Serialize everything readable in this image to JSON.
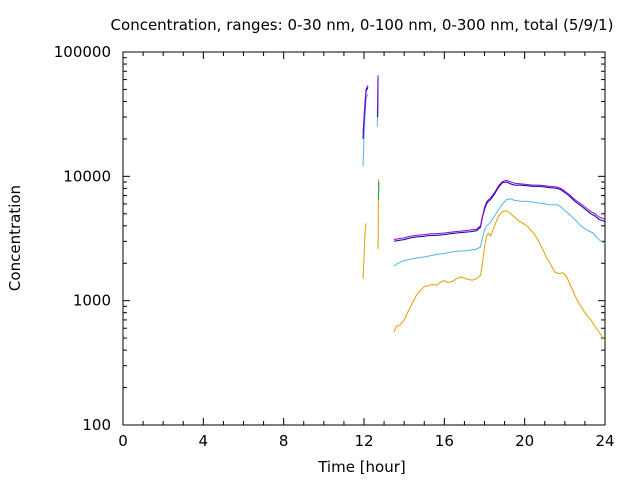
{
  "chart_data": {
    "type": "line",
    "title": "Concentration, ranges: 0-30 nm, 0-100 nm, 0-300 nm, total (5/9/1)",
    "xlabel": "Time [hour]",
    "ylabel": "Concentration",
    "xlim": [
      0,
      24
    ],
    "ylim": [
      100,
      100000
    ],
    "yscale": "log",
    "x_ticks": [
      0,
      4,
      8,
      12,
      16,
      20,
      24
    ],
    "x_tick_labels": [
      "0",
      "4",
      "8",
      "12",
      "16",
      "20",
      "24"
    ],
    "y_ticks": [
      100,
      1000,
      10000,
      100000
    ],
    "y_tick_labels": [
      "100",
      "1000",
      "10000",
      "100000"
    ],
    "grid": false,
    "legend": "none",
    "series": [
      {
        "color": "#e69f00",
        "segments": [
          [
            [
              11.95,
              1500
            ],
            [
              12.0,
              2200
            ],
            [
              12.05,
              3500
            ],
            [
              12.1,
              4200
            ]
          ],
          [
            [
              12.7,
              2600
            ],
            [
              12.72,
              9500
            ]
          ],
          [
            [
              13.5,
              560
            ],
            [
              13.6,
              620
            ],
            [
              13.8,
              640
            ],
            [
              14.0,
              700
            ],
            [
              14.2,
              820
            ],
            [
              14.4,
              950
            ],
            [
              14.6,
              1100
            ],
            [
              14.8,
              1200
            ],
            [
              15.0,
              1300
            ],
            [
              15.2,
              1320
            ],
            [
              15.4,
              1350
            ],
            [
              15.6,
              1330
            ],
            [
              15.8,
              1400
            ],
            [
              16.0,
              1450
            ],
            [
              16.2,
              1400
            ],
            [
              16.4,
              1430
            ],
            [
              16.6,
              1500
            ],
            [
              16.8,
              1550
            ],
            [
              17.0,
              1520
            ],
            [
              17.2,
              1480
            ],
            [
              17.4,
              1460
            ],
            [
              17.6,
              1500
            ],
            [
              17.8,
              1600
            ],
            [
              17.9,
              2000
            ],
            [
              18.0,
              2700
            ],
            [
              18.1,
              3300
            ],
            [
              18.2,
              3500
            ],
            [
              18.3,
              3300
            ],
            [
              18.5,
              4000
            ],
            [
              18.7,
              4800
            ],
            [
              18.9,
              5200
            ],
            [
              19.1,
              5300
            ],
            [
              19.3,
              5000
            ],
            [
              19.5,
              4700
            ],
            [
              19.7,
              4400
            ],
            [
              19.9,
              4200
            ],
            [
              20.1,
              4000
            ],
            [
              20.3,
              3700
            ],
            [
              20.5,
              3400
            ],
            [
              20.7,
              3000
            ],
            [
              20.9,
              2600
            ],
            [
              21.1,
              2200
            ],
            [
              21.3,
              1950
            ],
            [
              21.5,
              1700
            ],
            [
              21.7,
              1650
            ],
            [
              21.9,
              1680
            ],
            [
              22.1,
              1550
            ],
            [
              22.3,
              1300
            ],
            [
              22.5,
              1100
            ],
            [
              22.7,
              950
            ],
            [
              22.9,
              850
            ],
            [
              23.1,
              760
            ],
            [
              23.3,
              700
            ],
            [
              23.5,
              620
            ],
            [
              23.7,
              560
            ],
            [
              23.9,
              500
            ],
            [
              24.0,
              480
            ]
          ]
        ]
      },
      {
        "color": "#56b4e9",
        "segments": [
          [
            [
              11.95,
              12000
            ],
            [
              12.0,
              20000
            ],
            [
              12.05,
              30000
            ],
            [
              12.1,
              42000
            ],
            [
              12.2,
              46000
            ]
          ],
          [
            [
              12.66,
              25000
            ],
            [
              12.68,
              60000
            ]
          ],
          [
            [
              13.5,
              1900
            ],
            [
              13.7,
              2000
            ],
            [
              14.0,
              2100
            ],
            [
              14.3,
              2150
            ],
            [
              14.6,
              2200
            ],
            [
              15.0,
              2250
            ],
            [
              15.3,
              2300
            ],
            [
              15.6,
              2350
            ],
            [
              16.0,
              2400
            ],
            [
              16.3,
              2450
            ],
            [
              16.6,
              2500
            ],
            [
              17.0,
              2520
            ],
            [
              17.3,
              2550
            ],
            [
              17.6,
              2600
            ],
            [
              17.8,
              2700
            ],
            [
              17.9,
              3200
            ],
            [
              18.0,
              3700
            ],
            [
              18.1,
              4000
            ],
            [
              18.2,
              4100
            ],
            [
              18.3,
              4300
            ],
            [
              18.5,
              4800
            ],
            [
              18.7,
              5400
            ],
            [
              18.9,
              6000
            ],
            [
              19.1,
              6500
            ],
            [
              19.3,
              6600
            ],
            [
              19.5,
              6400
            ],
            [
              19.8,
              6300
            ],
            [
              20.1,
              6300
            ],
            [
              20.4,
              6200
            ],
            [
              20.7,
              6100
            ],
            [
              21.0,
              6000
            ],
            [
              21.3,
              5900
            ],
            [
              21.6,
              5900
            ],
            [
              21.8,
              5700
            ],
            [
              22.0,
              5300
            ],
            [
              22.2,
              5000
            ],
            [
              22.5,
              4500
            ],
            [
              22.8,
              4000
            ],
            [
              23.1,
              3700
            ],
            [
              23.4,
              3500
            ],
            [
              23.6,
              3200
            ],
            [
              23.8,
              3000
            ],
            [
              24.0,
              2900
            ]
          ]
        ]
      },
      {
        "color": "#009e73",
        "segments": [
          [
            [
              12.72,
              6500
            ],
            [
              12.74,
              9000
            ]
          ]
        ]
      },
      {
        "color": "#0000a0",
        "segments": [
          [
            [
              11.95,
              20000
            ],
            [
              12.0,
              28000
            ],
            [
              12.05,
              36000
            ],
            [
              12.1,
              48000
            ],
            [
              12.2,
              52000
            ]
          ],
          [
            [
              12.68,
              30000
            ],
            [
              12.7,
              62000
            ]
          ],
          [
            [
              13.5,
              3000
            ],
            [
              13.7,
              3050
            ],
            [
              14.0,
              3100
            ],
            [
              14.3,
              3200
            ],
            [
              14.6,
              3250
            ],
            [
              15.0,
              3300
            ],
            [
              15.3,
              3350
            ],
            [
              15.6,
              3350
            ],
            [
              16.0,
              3400
            ],
            [
              16.3,
              3450
            ],
            [
              16.6,
              3500
            ],
            [
              17.0,
              3550
            ],
            [
              17.3,
              3580
            ],
            [
              17.6,
              3650
            ],
            [
              17.8,
              3900
            ],
            [
              17.9,
              4700
            ],
            [
              18.0,
              5400
            ],
            [
              18.1,
              6000
            ],
            [
              18.2,
              6300
            ],
            [
              18.3,
              6500
            ],
            [
              18.5,
              7200
            ],
            [
              18.7,
              8200
            ],
            [
              18.9,
              8900
            ],
            [
              19.1,
              9000
            ],
            [
              19.3,
              8700
            ],
            [
              19.5,
              8500
            ],
            [
              19.8,
              8500
            ],
            [
              20.1,
              8400
            ],
            [
              20.4,
              8300
            ],
            [
              20.7,
              8300
            ],
            [
              21.0,
              8200
            ],
            [
              21.3,
              8100
            ],
            [
              21.6,
              8000
            ],
            [
              21.8,
              7800
            ],
            [
              22.0,
              7400
            ],
            [
              22.2,
              7000
            ],
            [
              22.5,
              6300
            ],
            [
              22.8,
              5800
            ],
            [
              23.1,
              5300
            ],
            [
              23.3,
              5000
            ],
            [
              23.5,
              4800
            ],
            [
              23.7,
              4500
            ],
            [
              23.9,
              4400
            ],
            [
              24.0,
              4300
            ]
          ]
        ]
      },
      {
        "color": "#9400d3",
        "segments": [
          [
            [
              11.95,
              22000
            ],
            [
              12.0,
              30000
            ],
            [
              12.05,
              40000
            ],
            [
              12.1,
              50000
            ],
            [
              12.2,
              54000
            ]
          ],
          [
            [
              12.68,
              34000
            ],
            [
              12.7,
              65000
            ]
          ],
          [
            [
              13.5,
              3100
            ],
            [
              13.7,
              3150
            ],
            [
              14.0,
              3200
            ],
            [
              14.3,
              3300
            ],
            [
              14.6,
              3350
            ],
            [
              15.0,
              3400
            ],
            [
              15.3,
              3450
            ],
            [
              15.6,
              3450
            ],
            [
              16.0,
              3500
            ],
            [
              16.3,
              3550
            ],
            [
              16.6,
              3600
            ],
            [
              17.0,
              3650
            ],
            [
              17.3,
              3700
            ],
            [
              17.6,
              3750
            ],
            [
              17.8,
              4000
            ],
            [
              17.9,
              4800
            ],
            [
              18.0,
              5600
            ],
            [
              18.1,
              6200
            ],
            [
              18.2,
              6500
            ],
            [
              18.3,
              6700
            ],
            [
              18.5,
              7400
            ],
            [
              18.7,
              8400
            ],
            [
              18.9,
              9100
            ],
            [
              19.1,
              9300
            ],
            [
              19.3,
              9000
            ],
            [
              19.5,
              8800
            ],
            [
              19.8,
              8700
            ],
            [
              20.1,
              8600
            ],
            [
              20.4,
              8500
            ],
            [
              20.7,
              8500
            ],
            [
              21.0,
              8400
            ],
            [
              21.3,
              8300
            ],
            [
              21.6,
              8200
            ],
            [
              21.8,
              8000
            ],
            [
              22.0,
              7600
            ],
            [
              22.2,
              7200
            ],
            [
              22.5,
              6500
            ],
            [
              22.8,
              6000
            ],
            [
              23.1,
              5500
            ],
            [
              23.3,
              5200
            ],
            [
              23.5,
              5000
            ],
            [
              23.7,
              4700
            ],
            [
              23.9,
              4600
            ],
            [
              24.0,
              4500
            ]
          ]
        ]
      }
    ]
  }
}
